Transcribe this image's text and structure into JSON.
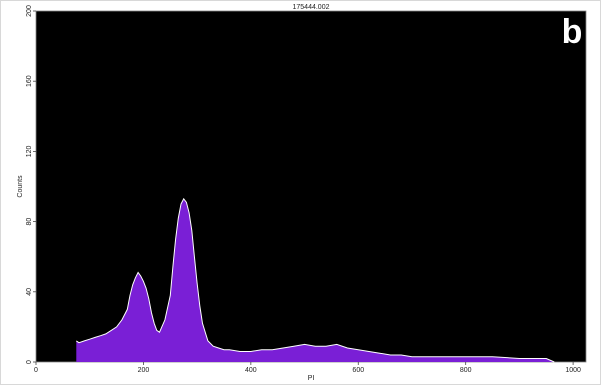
{
  "chart_data": {
    "type": "area",
    "title": "175444.002",
    "panel_label": "b",
    "xlabel": "PI",
    "ylabel": "Counts",
    "xlim": [
      0,
      1024
    ],
    "ylim": [
      0,
      200
    ],
    "x_ticks": [
      0,
      200,
      400,
      600,
      800,
      1000
    ],
    "y_ticks": [
      0,
      40,
      80,
      120,
      160,
      200
    ],
    "background": "#000000",
    "fill_color": "#7a1fd6",
    "outline_color": "#ffffff",
    "grid": false,
    "series": [
      {
        "x": [
          75,
          80,
          90,
          100,
          110,
          120,
          130,
          140,
          150,
          160,
          170,
          175,
          180,
          185,
          190,
          195,
          200,
          205,
          210,
          215,
          220,
          225,
          230,
          240,
          250,
          255,
          260,
          265,
          270,
          275,
          280,
          285,
          290,
          295,
          300,
          305,
          310,
          320,
          330,
          340,
          350,
          360,
          380,
          400,
          420,
          440,
          460,
          480,
          500,
          520,
          540,
          560,
          580,
          600,
          620,
          640,
          660,
          680,
          700,
          750,
          800,
          850,
          900,
          950,
          965
        ],
        "y": [
          12,
          11,
          12,
          13,
          14,
          15,
          16,
          18,
          20,
          24,
          30,
          38,
          44,
          48,
          51,
          49,
          46,
          42,
          36,
          28,
          22,
          18,
          17,
          24,
          38,
          55,
          70,
          82,
          90,
          93,
          91,
          85,
          75,
          60,
          45,
          32,
          22,
          12,
          9,
          8,
          7,
          7,
          6,
          6,
          7,
          7,
          8,
          9,
          10,
          9,
          9,
          10,
          8,
          7,
          6,
          5,
          4,
          4,
          3,
          3,
          3,
          3,
          2,
          2,
          0
        ]
      }
    ]
  }
}
